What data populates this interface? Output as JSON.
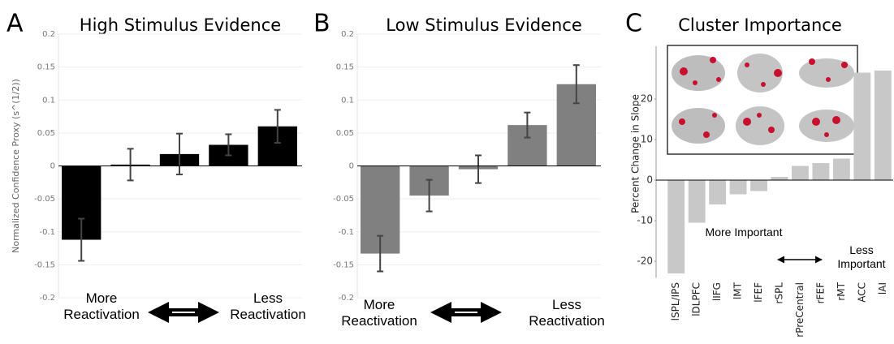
{
  "chart_data": [
    {
      "type": "bar",
      "panel": "A",
      "title": "High Stimulus Evidence",
      "y_label": "Normalized Confidence Proxy (s^(1/2))",
      "values": [
        -0.112,
        0.002,
        0.018,
        0.032,
        0.06
      ],
      "errors": [
        0.032,
        0.024,
        0.031,
        0.016,
        0.025
      ],
      "color": "#000000",
      "ylim": [
        -0.2,
        0.2
      ],
      "yticks": [
        -0.2,
        -0.15,
        -0.1,
        -0.05,
        0,
        0.05,
        0.1,
        0.15,
        0.2
      ],
      "grid": true,
      "annotations": [
        "More Reactivation",
        "Less Reactivation"
      ]
    },
    {
      "type": "bar",
      "panel": "B",
      "title": "Low Stimulus Evidence",
      "values": [
        -0.133,
        -0.045,
        -0.005,
        0.062,
        0.124
      ],
      "errors": [
        0.027,
        0.024,
        0.021,
        0.019,
        0.029
      ],
      "color": "#808080",
      "ylim": [
        -0.2,
        0.2
      ],
      "yticks": [
        -0.2,
        -0.15,
        -0.1,
        -0.05,
        0,
        0.05,
        0.1,
        0.15,
        0.2
      ],
      "grid": true,
      "annotations": [
        "More Reactivation",
        "Less Reactivation"
      ]
    },
    {
      "type": "bar",
      "panel": "C",
      "title": "Cluster Importance",
      "y_label": "Percent Change in Slope",
      "categories": [
        "lSPL/IPS",
        "lDLPFC",
        "lIFG",
        "lMT",
        "lFEF",
        "rSPL",
        "rPreCentral",
        "rFEF",
        "rMT",
        "ACC",
        "lAI"
      ],
      "values": [
        -23,
        -10.5,
        -6,
        -3.5,
        -2.7,
        0.8,
        3.5,
        4.2,
        5.3,
        26.5,
        27
      ],
      "color": "#c8c8c8",
      "ylim": [
        -24,
        33
      ],
      "yticks": [
        -20,
        -10,
        0,
        10,
        20
      ],
      "grid": false,
      "annotations": [
        "More Important",
        "Less Important"
      ]
    }
  ]
}
